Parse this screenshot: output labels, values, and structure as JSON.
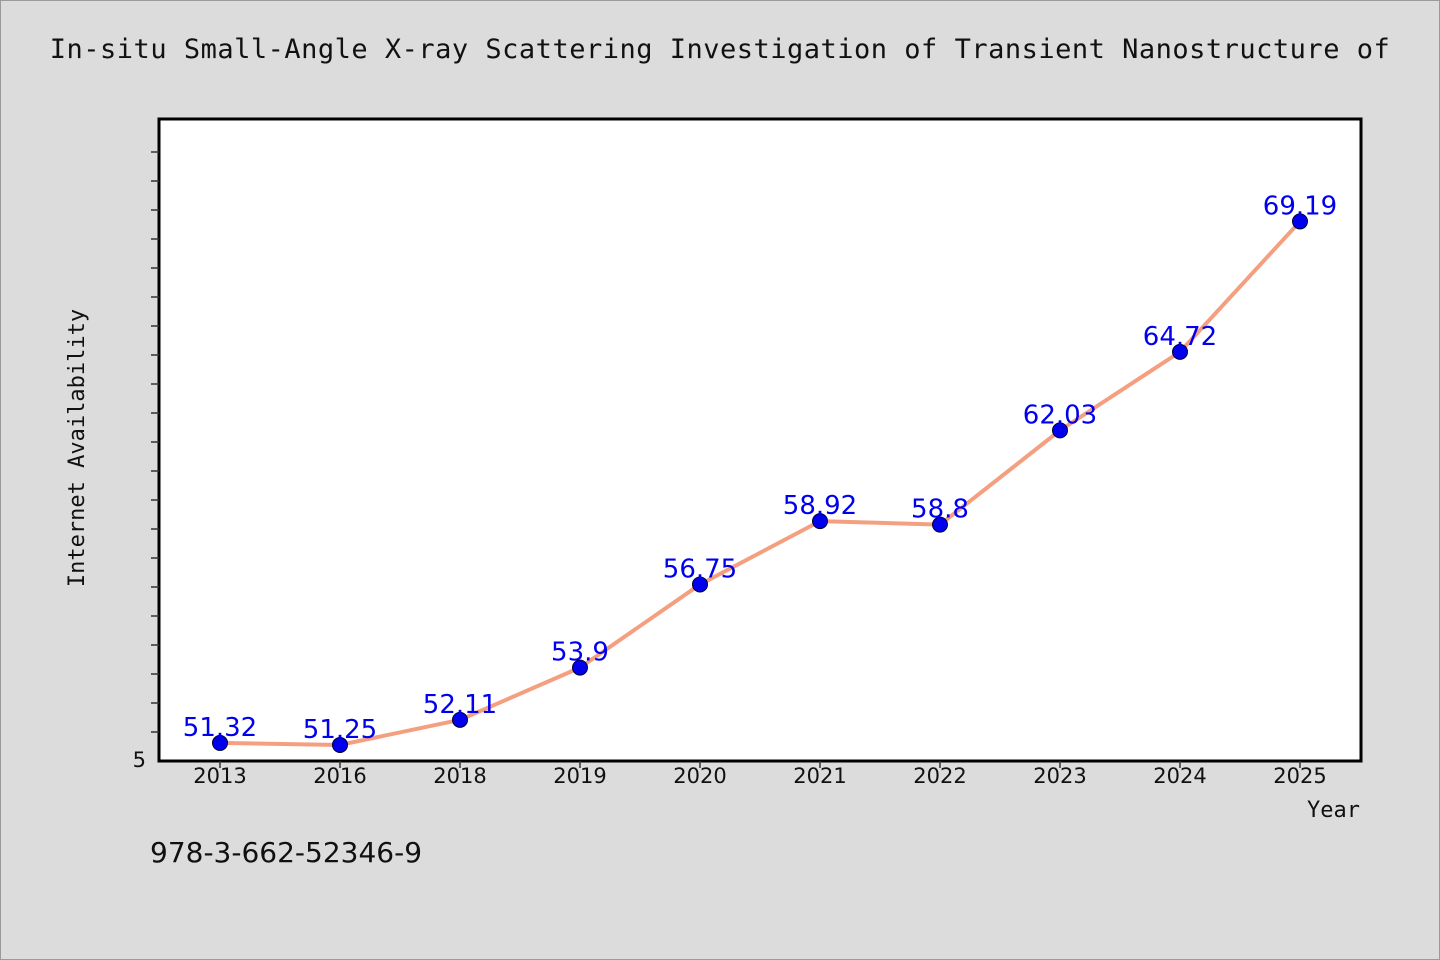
{
  "chart_data": {
    "type": "line",
    "title": "In-situ Small-Angle X-ray Scattering Investigation of Transient Nanostructure of",
    "xlabel": "Year",
    "ylabel": "Internet Availability",
    "categories": [
      "2013",
      "2016",
      "2018",
      "2019",
      "2020",
      "2021",
      "2022",
      "2023",
      "2024",
      "2025"
    ],
    "series": [
      {
        "values": [
          51.32,
          51.25,
          52.11,
          53.9,
          56.75,
          58.92,
          58.8,
          62.03,
          64.72,
          69.19
        ],
        "labels": [
          "51.32",
          "51.25",
          "52.11",
          "53.9",
          "56.75",
          "58.92",
          "58.8",
          "62.03",
          "64.72",
          "69.19"
        ]
      }
    ],
    "ylim": [
      50.7,
      72.7
    ],
    "y_tick_label": "5",
    "grid": false,
    "legend": "none",
    "colors": {
      "line": "#f4a080",
      "marker": "#0000ee",
      "data_label": "#0000ee",
      "plot_bg": "#ffffff",
      "page_bg": "#dcdcdc"
    }
  },
  "footer": {
    "isbn": "978-3-662-52346-9"
  }
}
